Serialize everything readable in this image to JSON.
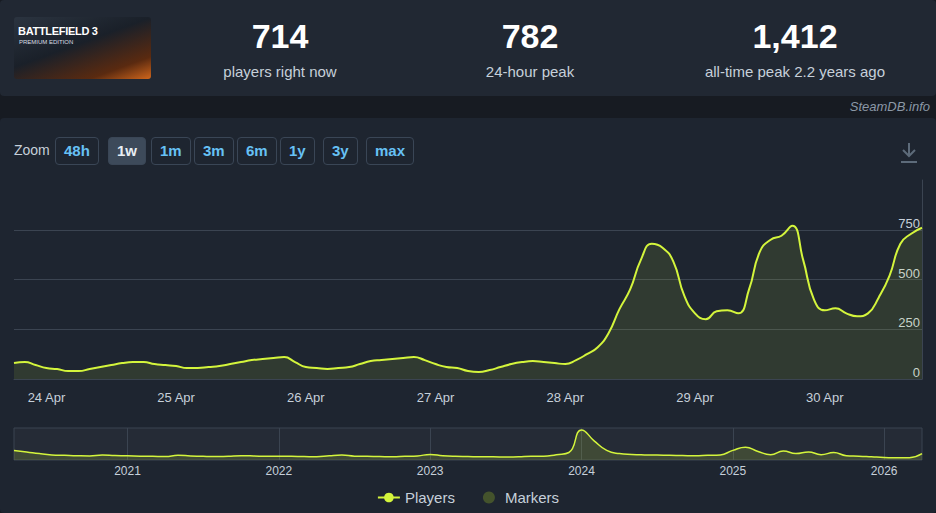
{
  "header": {
    "image": {
      "title": "BATTLEFIELD 3",
      "subtitle": "PREMIUM EDITION"
    },
    "stats": [
      {
        "value": "714",
        "label": "players right now"
      },
      {
        "value": "782",
        "label": "24-hour peak"
      },
      {
        "value": "1,412",
        "label": "all-time peak 2.2 years ago"
      }
    ]
  },
  "watermark": "SteamDB.info",
  "zoom": {
    "label": "Zoom",
    "options": [
      "48h",
      "1w",
      "1m",
      "3m",
      "6m",
      "1y",
      "3y",
      "max"
    ],
    "selected": "1w"
  },
  "chart_data": [
    {
      "type": "line",
      "categories": [
        null,
        null,
        null,
        "24 Apr",
        null,
        null,
        null,
        null,
        null,
        null,
        null,
        null,
        null,
        null,
        null,
        "25 Apr",
        null,
        null,
        null,
        null,
        null,
        null,
        null,
        null,
        null,
        null,
        null,
        "26 Apr",
        null,
        null,
        null,
        null,
        null,
        null,
        null,
        null,
        null,
        null,
        null,
        "27 Apr",
        null,
        null,
        null,
        null,
        null,
        null,
        null,
        null,
        null,
        null,
        null,
        "28 Apr",
        null,
        null,
        null,
        null,
        null,
        null,
        null,
        null,
        null,
        null,
        null,
        "29 Apr",
        null,
        null,
        null,
        null,
        null,
        null,
        null,
        null,
        null,
        null,
        null,
        "30 Apr",
        null,
        null,
        null,
        null,
        null,
        null,
        null,
        null,
        null
      ],
      "series": [
        {
          "name": "Players",
          "type": "line",
          "color": "#d4f53c",
          "line_style": "solid",
          "values": [
            80,
            85,
            70,
            55,
            50,
            40,
            40,
            50,
            60,
            70,
            80,
            85,
            85,
            75,
            70,
            65,
            55,
            55,
            60,
            65,
            75,
            85,
            95,
            100,
            105,
            110,
            85,
            60,
            55,
            50,
            55,
            60,
            75,
            90,
            95,
            100,
            105,
            110,
            95,
            75,
            60,
            55,
            40,
            35,
            45,
            60,
            75,
            85,
            90,
            85,
            80,
            75,
            95,
            125,
            160,
            230,
            350,
            450,
            600,
            680,
            660,
            590,
            420,
            330,
            300,
            340,
            345,
            330,
            450,
            640,
            700,
            720,
            770,
            600,
            400,
            345,
            355,
            330,
            315,
            330,
            410,
            520,
            680,
            730,
            760
          ]
        },
        {
          "name": "Markers",
          "type": "scatter",
          "color": "#4e5f2c",
          "marker": "circle",
          "values": [
            null,
            null,
            null,
            null,
            null,
            null,
            null,
            null,
            null,
            null,
            null,
            null,
            null,
            null,
            null,
            null,
            null,
            null,
            null,
            null,
            null,
            null,
            null,
            null,
            null,
            null,
            null,
            null,
            null,
            null,
            null,
            null,
            null,
            null,
            null,
            null,
            null,
            null,
            null,
            null,
            null,
            null,
            null,
            null,
            null,
            null,
            null,
            null,
            null,
            null,
            null,
            null,
            null,
            null,
            null,
            null,
            null,
            null,
            null,
            null,
            null,
            null,
            null,
            null,
            null,
            null,
            null,
            null,
            null,
            null,
            null,
            null,
            null,
            null,
            null,
            null,
            null,
            null,
            null,
            null,
            null,
            null,
            null,
            null,
            null
          ]
        }
      ],
      "ylim": [
        0,
        1000
      ],
      "yticks": [
        0,
        250,
        500,
        750
      ],
      "grid": true,
      "legend": "bottom"
    },
    {
      "type": "line",
      "categories": [
        null,
        null,
        null,
        null,
        null,
        null,
        null,
        null,
        null,
        "2021",
        null,
        null,
        null,
        null,
        null,
        null,
        null,
        null,
        null,
        null,
        null,
        "2022",
        null,
        null,
        null,
        null,
        null,
        null,
        null,
        null,
        null,
        null,
        null,
        "2023",
        null,
        null,
        null,
        null,
        null,
        null,
        null,
        null,
        null,
        null,
        null,
        "2024",
        null,
        null,
        null,
        null,
        null,
        null,
        null,
        null,
        null,
        null,
        null,
        "2025",
        null,
        null,
        null,
        null,
        null,
        null,
        null,
        null,
        null,
        null,
        null,
        "2026",
        null,
        null,
        null
      ],
      "values": [
        450,
        380,
        300,
        240,
        220,
        200,
        190,
        230,
        210,
        200,
        180,
        170,
        160,
        220,
        190,
        170,
        160,
        180,
        200,
        190,
        170,
        180,
        170,
        160,
        150,
        200,
        230,
        180,
        170,
        160,
        150,
        170,
        190,
        260,
        200,
        170,
        160,
        150,
        150,
        140,
        150,
        180,
        170,
        250,
        350,
        1412,
        900,
        450,
        300,
        260,
        240,
        230,
        220,
        210,
        200,
        220,
        240,
        450,
        600,
        400,
        250,
        420,
        300,
        380,
        250,
        350,
        200,
        180,
        150,
        120,
        100,
        110,
        300
      ],
      "color": "#d4f53c",
      "ylim": [
        0,
        1500
      ],
      "tick_labels": "x"
    }
  ]
}
